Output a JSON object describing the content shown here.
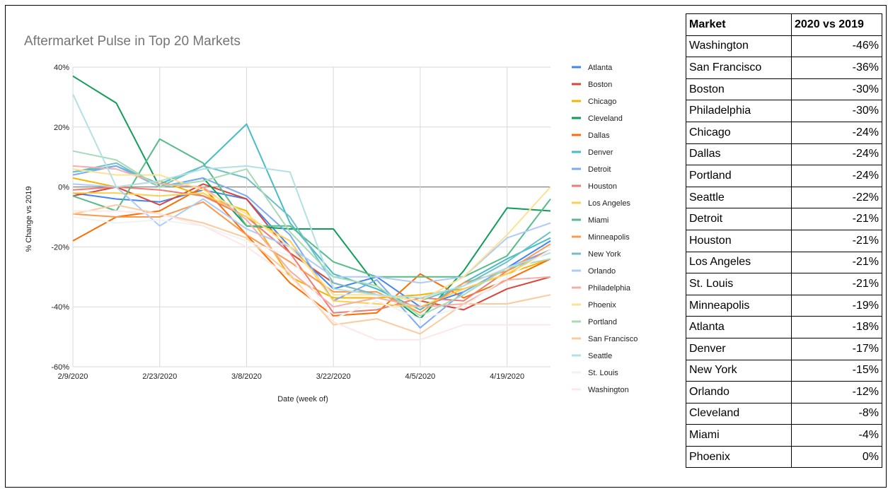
{
  "chart_data": {
    "type": "line",
    "title": "Aftermarket Pulse in Top 20 Markets",
    "xlabel": "Date (week of)",
    "ylabel": "% Change vs 2019",
    "x": [
      "2/9/2020",
      "2/16/2020",
      "2/23/2020",
      "3/1/2020",
      "3/8/2020",
      "3/15/2020",
      "3/22/2020",
      "3/29/2020",
      "4/5/2020",
      "4/12/2020",
      "4/19/2020",
      "4/26/2020"
    ],
    "x_tick_labels": [
      "2/9/2020",
      "2/23/2020",
      "3/8/2020",
      "3/22/2020",
      "4/5/2020",
      "4/19/2020"
    ],
    "ylim": [
      -60,
      40
    ],
    "y_ticks": [
      40,
      20,
      0,
      -20,
      -40,
      -60
    ],
    "y_tick_labels": [
      "40%",
      "20%",
      "0%",
      "-20%",
      "-40%",
      "-60%"
    ],
    "grid": true,
    "legend_position": "right",
    "series": [
      {
        "name": "Atlanta",
        "color": "#4285f4",
        "values": [
          -2,
          -4,
          -5,
          -1,
          -4,
          -20,
          -34,
          -30,
          -40,
          -35,
          -27,
          -18
        ]
      },
      {
        "name": "Boston",
        "color": "#db4437",
        "values": [
          -3,
          0,
          -6,
          1,
          -4,
          -22,
          -32,
          -36,
          -38,
          -41,
          -34,
          -30
        ]
      },
      {
        "name": "Chicago",
        "color": "#f4b400",
        "values": [
          3,
          0,
          2,
          -3,
          -8,
          -30,
          -37,
          -37,
          -36,
          -34,
          -29,
          -24
        ]
      },
      {
        "name": "Cleveland",
        "color": "#0f9d58",
        "values": [
          37,
          28,
          0,
          3,
          -13,
          -14,
          -14,
          -33,
          -44,
          -28,
          -7,
          -8
        ]
      },
      {
        "name": "Dallas",
        "color": "#ff6d01",
        "values": [
          -18,
          -10,
          -8,
          0,
          -16,
          -32,
          -43,
          -42,
          -29,
          -37,
          -31,
          -24
        ]
      },
      {
        "name": "Denver",
        "color": "#46bdc6",
        "values": [
          5,
          7,
          1,
          7,
          21,
          -12,
          -29,
          -34,
          -41,
          -32,
          -24,
          -17
        ]
      },
      {
        "name": "Detroit",
        "color": "#7baaf7",
        "values": [
          4,
          7,
          0,
          3,
          -3,
          -16,
          -38,
          -31,
          -47,
          -35,
          -27,
          -21
        ]
      },
      {
        "name": "Houston",
        "color": "#f07b72",
        "values": [
          -1,
          0,
          -1,
          -3,
          -10,
          -22,
          -42,
          -41,
          -37,
          -38,
          -28,
          -21
        ]
      },
      {
        "name": "Los Angeles",
        "color": "#fcd04f",
        "values": [
          -2,
          -2,
          -3,
          -2,
          -10,
          -18,
          -38,
          -39,
          -40,
          -34,
          -29,
          -21
        ]
      },
      {
        "name": "Miami",
        "color": "#57bb8a",
        "values": [
          -3,
          -8,
          16,
          8,
          -13,
          -13,
          -25,
          -30,
          -30,
          -30,
          -23,
          -4
        ]
      },
      {
        "name": "Minneapolis",
        "color": "#ff994d",
        "values": [
          -9,
          -10,
          -10,
          -5,
          -16,
          -25,
          -35,
          -35,
          -42,
          -32,
          -28,
          -19
        ]
      },
      {
        "name": "New York",
        "color": "#71c0c7",
        "values": [
          5,
          8,
          0,
          7,
          3,
          -10,
          -32,
          -36,
          -38,
          -33,
          -25,
          -15
        ]
      },
      {
        "name": "Orlando",
        "color": "#aecbfa",
        "values": [
          1,
          0,
          -13,
          -4,
          -14,
          -20,
          -30,
          -30,
          -32,
          -30,
          -17,
          -12
        ]
      },
      {
        "name": "Philadelphia",
        "color": "#f6aea9",
        "values": [
          7,
          6,
          1,
          0,
          -11,
          -28,
          -40,
          -37,
          -40,
          -39,
          -31,
          -30
        ]
      },
      {
        "name": "Phoenix",
        "color": "#fde293",
        "values": [
          6,
          4,
          4,
          -1,
          -9,
          -20,
          -36,
          -36,
          -38,
          -30,
          -16,
          0
        ]
      },
      {
        "name": "Portland",
        "color": "#a8dab5",
        "values": [
          12,
          9,
          0,
          2,
          6,
          -15,
          -30,
          -33,
          -43,
          -36,
          -27,
          -24
        ]
      },
      {
        "name": "San Francisco",
        "color": "#fbcb9f",
        "values": [
          -9,
          -6,
          -9,
          -12,
          -17,
          -29,
          -46,
          -44,
          -49,
          -39,
          -39,
          -36
        ]
      },
      {
        "name": "Seattle",
        "color": "#b3e0e4",
        "values": [
          31,
          0,
          2,
          6,
          7,
          5,
          -34,
          -36,
          -37,
          -33,
          -27,
          -22
        ]
      },
      {
        "name": "St. Louis",
        "color": "#f2f2f2",
        "values": [
          -10,
          -12,
          -11,
          -13,
          -18,
          -23,
          -44,
          -38,
          -44,
          -40,
          -30,
          -21
        ]
      },
      {
        "name": "Washington",
        "color": "#fce8e6",
        "values": [
          -8,
          -8,
          -9,
          -13,
          -20,
          -30,
          -45,
          -51,
          -51,
          -46,
          -46,
          -46
        ]
      }
    ]
  },
  "table": {
    "headers": [
      "Market",
      "2020 vs 2019"
    ],
    "rows": [
      [
        "Washington",
        "-46%"
      ],
      [
        "San Francisco",
        "-36%"
      ],
      [
        "Boston",
        "-30%"
      ],
      [
        "Philadelphia",
        "-30%"
      ],
      [
        "Chicago",
        "-24%"
      ],
      [
        "Dallas",
        "-24%"
      ],
      [
        "Portland",
        "-24%"
      ],
      [
        "Seattle",
        "-22%"
      ],
      [
        "Detroit",
        "-21%"
      ],
      [
        "Houston",
        "-21%"
      ],
      [
        "Los Angeles",
        "-21%"
      ],
      [
        "St. Louis",
        "-21%"
      ],
      [
        "Minneapolis",
        "-19%"
      ],
      [
        "Atlanta",
        "-18%"
      ],
      [
        "Denver",
        "-17%"
      ],
      [
        "New York",
        "-15%"
      ],
      [
        "Orlando",
        "-12%"
      ],
      [
        "Cleveland",
        "-8%"
      ],
      [
        "Miami",
        "-4%"
      ],
      [
        "Phoenix",
        "0%"
      ]
    ]
  }
}
